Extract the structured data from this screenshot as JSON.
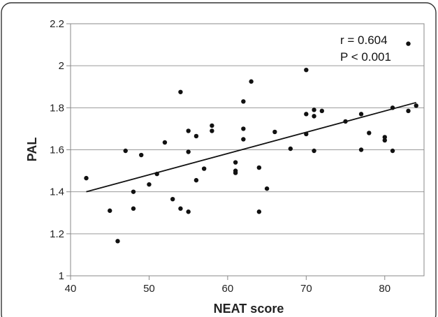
{
  "chart_data": {
    "type": "scatter",
    "title": "",
    "xlabel": "NEAT score",
    "ylabel": "PAL",
    "xlim": [
      40,
      85
    ],
    "ylim": [
      1,
      2.2
    ],
    "x_ticks": [
      40,
      50,
      60,
      70,
      80
    ],
    "y_ticks": [
      "1",
      "1.2",
      "1.4",
      "1.6",
      "1.8",
      "2",
      "2.2"
    ],
    "grid": "horizontal",
    "annotations": [
      "r = 0.604",
      "P < 0.001"
    ],
    "trendline": {
      "x": [
        42,
        84
      ],
      "y": [
        1.4,
        1.825
      ]
    },
    "points": [
      [
        42,
        1.465
      ],
      [
        45,
        1.31
      ],
      [
        46,
        1.165
      ],
      [
        47,
        1.595
      ],
      [
        48,
        1.4
      ],
      [
        48,
        1.32
      ],
      [
        49,
        1.575
      ],
      [
        50,
        1.435
      ],
      [
        51,
        1.485
      ],
      [
        52,
        1.635
      ],
      [
        53,
        1.365
      ],
      [
        54,
        1.875
      ],
      [
        54,
        1.32
      ],
      [
        55,
        1.69
      ],
      [
        55,
        1.59
      ],
      [
        55,
        1.305
      ],
      [
        56,
        1.665
      ],
      [
        56,
        1.455
      ],
      [
        57,
        1.51
      ],
      [
        58,
        1.715
      ],
      [
        58,
        1.69
      ],
      [
        61,
        1.54
      ],
      [
        61,
        1.5
      ],
      [
        61,
        1.49
      ],
      [
        62,
        1.83
      ],
      [
        62,
        1.7
      ],
      [
        62,
        1.65
      ],
      [
        63,
        1.925
      ],
      [
        64,
        1.515
      ],
      [
        64,
        1.305
      ],
      [
        65,
        1.415
      ],
      [
        66,
        1.685
      ],
      [
        68,
        1.605
      ],
      [
        70,
        1.98
      ],
      [
        70,
        1.77
      ],
      [
        70,
        1.675
      ],
      [
        71,
        1.79
      ],
      [
        71,
        1.76
      ],
      [
        71,
        1.595
      ],
      [
        72,
        1.785
      ],
      [
        75,
        1.735
      ],
      [
        77,
        1.77
      ],
      [
        77,
        1.6
      ],
      [
        78,
        1.68
      ],
      [
        80,
        1.66
      ],
      [
        80,
        1.645
      ],
      [
        81,
        1.8
      ],
      [
        81,
        1.595
      ],
      [
        83,
        2.105
      ],
      [
        83,
        1.785
      ],
      [
        84,
        1.81
      ]
    ]
  }
}
